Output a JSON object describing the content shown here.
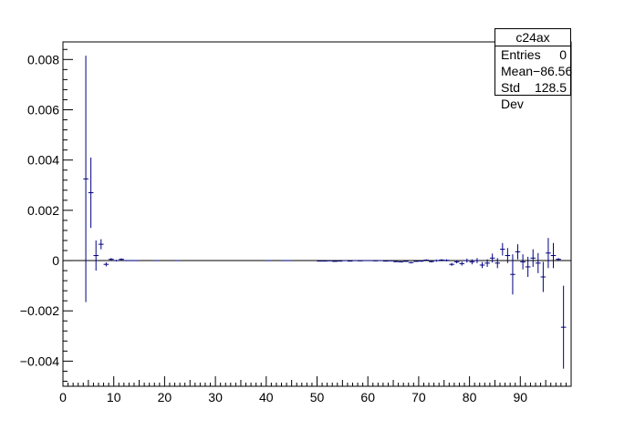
{
  "chart_data": {
    "type": "scatter",
    "title": "",
    "xlabel": "",
    "ylabel": "",
    "xlim": [
      0,
      100
    ],
    "ylim": [
      -0.005,
      0.0087
    ],
    "grid": false,
    "x_ticks": [
      0,
      10,
      20,
      30,
      40,
      50,
      60,
      70,
      80,
      90
    ],
    "x_tick_labels": [
      "0",
      "10",
      "20",
      "30",
      "40",
      "50",
      "60",
      "70",
      "80",
      "90"
    ],
    "y_ticks": [
      -0.004,
      -0.002,
      0,
      0.002,
      0.004,
      0.006,
      0.008
    ],
    "y_tick_labels": [
      "−0.004",
      "−0.002",
      "0",
      "0.002",
      "0.004",
      "0.006",
      "0.008"
    ],
    "line_color": "#000080",
    "stats": {
      "title": "c24ax",
      "rows": [
        {
          "label": "Entries",
          "value": "0"
        },
        {
          "label": "Mean",
          "value": "−86.56"
        },
        {
          "label": "Std Dev",
          "value": "128.5"
        }
      ]
    },
    "series": [
      {
        "points": [
          {
            "x": 4.5,
            "y": 0.00325,
            "err": 0.0049
          },
          {
            "x": 5.5,
            "y": 0.0027,
            "err": 0.0014
          },
          {
            "x": 6.5,
            "y": 0.0002,
            "err": 0.0006
          },
          {
            "x": 7.5,
            "y": 0.00065,
            "err": 0.0002
          },
          {
            "x": 8.5,
            "y": -0.00015,
            "err": 8e-05
          },
          {
            "x": 9.5,
            "y": 5e-05,
            "err": 5e-05
          },
          {
            "x": 10.5,
            "y": 0.0,
            "err": 3e-05
          },
          {
            "x": 11.5,
            "y": 5e-05,
            "err": 4e-05
          },
          {
            "x": 12.5,
            "y": 0.0,
            "err": 2e-05
          },
          {
            "x": 13.5,
            "y": 0.0,
            "err": 2e-05
          },
          {
            "x": 14.5,
            "y": 0.0,
            "err": 2e-05
          },
          {
            "x": 18.5,
            "y": 0.0,
            "err": 1e-05
          },
          {
            "x": 22.5,
            "y": 0.0,
            "err": 1e-05
          },
          {
            "x": 40.5,
            "y": 0.0,
            "err": 1e-05
          },
          {
            "x": 43.5,
            "y": 0.0,
            "err": 1e-05
          },
          {
            "x": 44.5,
            "y": 0.0,
            "err": 1e-05
          },
          {
            "x": 50.5,
            "y": -2e-05,
            "err": 1e-05
          },
          {
            "x": 51.5,
            "y": -2e-05,
            "err": 1e-05
          },
          {
            "x": 52.5,
            "y": -1e-05,
            "err": 1e-05
          },
          {
            "x": 53.5,
            "y": -3e-05,
            "err": 1e-05
          },
          {
            "x": 54.5,
            "y": -2e-05,
            "err": 1e-05
          },
          {
            "x": 55.5,
            "y": 0.0,
            "err": 1e-05
          },
          {
            "x": 56.5,
            "y": -2e-05,
            "err": 1e-05
          },
          {
            "x": 57.5,
            "y": 0.0,
            "err": 1e-05
          },
          {
            "x": 58.5,
            "y": -1e-05,
            "err": 1e-05
          },
          {
            "x": 59.5,
            "y": 0.0,
            "err": 1e-05
          },
          {
            "x": 60.5,
            "y": 0.0,
            "err": 1e-05
          },
          {
            "x": 61.5,
            "y": -1e-05,
            "err": 1e-05
          },
          {
            "x": 62.5,
            "y": 0.0,
            "err": 1e-05
          },
          {
            "x": 63.5,
            "y": -2e-05,
            "err": 1e-05
          },
          {
            "x": 64.5,
            "y": -1e-05,
            "err": 1e-05
          },
          {
            "x": 65.5,
            "y": -4e-05,
            "err": 2e-05
          },
          {
            "x": 66.5,
            "y": -5e-05,
            "err": 2e-05
          },
          {
            "x": 67.5,
            "y": -3e-05,
            "err": 2e-05
          },
          {
            "x": 68.5,
            "y": -8e-05,
            "err": 3e-05
          },
          {
            "x": 69.5,
            "y": -3e-05,
            "err": 2e-05
          },
          {
            "x": 70.5,
            "y": -2e-05,
            "err": 3e-05
          },
          {
            "x": 71.5,
            "y": 2e-05,
            "err": 3e-05
          },
          {
            "x": 72.5,
            "y": -4e-05,
            "err": 3e-05
          },
          {
            "x": 73.5,
            "y": 0.0,
            "err": 4e-05
          },
          {
            "x": 74.5,
            "y": 2e-05,
            "err": 4e-05
          },
          {
            "x": 75.5,
            "y": 1e-05,
            "err": 4e-05
          },
          {
            "x": 76.5,
            "y": -0.00015,
            "err": 6e-05
          },
          {
            "x": 77.5,
            "y": -5e-05,
            "err": 6e-05
          },
          {
            "x": 78.5,
            "y": -0.00012,
            "err": 8e-05
          },
          {
            "x": 79.5,
            "y": 0.0,
            "err": 8e-05
          },
          {
            "x": 80.5,
            "y": -5e-05,
            "err": 0.0001
          },
          {
            "x": 81.5,
            "y": 0.0,
            "err": 0.0001
          },
          {
            "x": 82.5,
            "y": -0.00018,
            "err": 0.00012
          },
          {
            "x": 83.5,
            "y": -0.0001,
            "err": 0.00015
          },
          {
            "x": 84.5,
            "y": 0.0001,
            "err": 0.00018
          },
          {
            "x": 85.5,
            "y": -0.0001,
            "err": 0.0002
          },
          {
            "x": 86.5,
            "y": 0.00045,
            "err": 0.00025
          },
          {
            "x": 87.5,
            "y": 0.0002,
            "err": 0.0003
          },
          {
            "x": 88.5,
            "y": -0.00055,
            "err": 0.0008
          },
          {
            "x": 89.5,
            "y": 0.00035,
            "err": 0.0003
          },
          {
            "x": 90.5,
            "y": -5e-05,
            "err": 0.0003
          },
          {
            "x": 91.5,
            "y": -0.00025,
            "err": 0.0004
          },
          {
            "x": 92.5,
            "y": 0.0001,
            "err": 0.00035
          },
          {
            "x": 93.5,
            "y": -0.0001,
            "err": 0.0004
          },
          {
            "x": 94.5,
            "y": -0.00065,
            "err": 0.0006
          },
          {
            "x": 95.5,
            "y": 0.0003,
            "err": 0.0006
          },
          {
            "x": 96.5,
            "y": 0.0002,
            "err": 0.0005
          },
          {
            "x": 97.5,
            "y": 5e-05,
            "err": 5e-05
          },
          {
            "x": 98.5,
            "y": -0.00265,
            "err": 0.00165
          }
        ]
      }
    ]
  }
}
